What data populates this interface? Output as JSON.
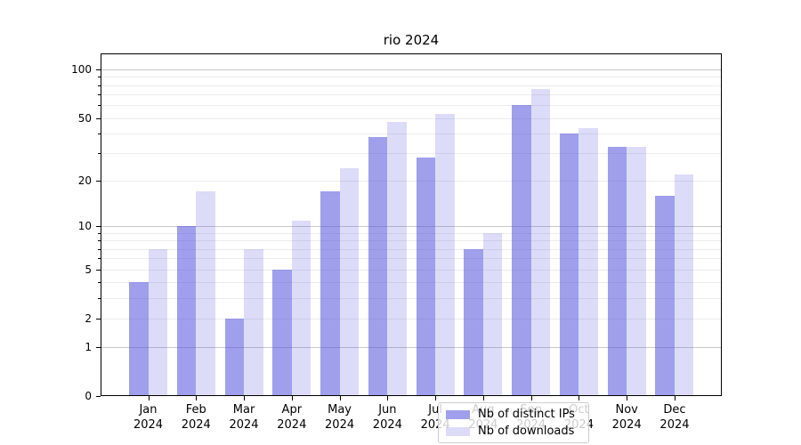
{
  "figure": {
    "background": "#ffffff"
  },
  "chart_data": {
    "type": "bar",
    "title": "rio 2024",
    "categories": [
      {
        "month": "Jan",
        "year": "2024"
      },
      {
        "month": "Feb",
        "year": "2024"
      },
      {
        "month": "Mar",
        "year": "2024"
      },
      {
        "month": "Apr",
        "year": "2024"
      },
      {
        "month": "May",
        "year": "2024"
      },
      {
        "month": "Jun",
        "year": "2024"
      },
      {
        "month": "Jul",
        "year": "2024"
      },
      {
        "month": "Aug",
        "year": "2024"
      },
      {
        "month": "Sep",
        "year": "2024"
      },
      {
        "month": "Oct",
        "year": "2024"
      },
      {
        "month": "Nov",
        "year": "2024"
      },
      {
        "month": "Dec",
        "year": "2024"
      }
    ],
    "series": [
      {
        "name": "Nb of distinct IPs",
        "color": "rgba(80,80,220,0.55)",
        "values": [
          4,
          10,
          2,
          5,
          17,
          38,
          28,
          7,
          60,
          40,
          33,
          16
        ]
      },
      {
        "name": "Nb of downloads",
        "color": "rgba(80,80,220,0.2)",
        "values": [
          7,
          17,
          7,
          11,
          24,
          47,
          53,
          9,
          76,
          43,
          33,
          22
        ]
      }
    ],
    "y_axis": {
      "scale": "log-like (position = log10(1+value), 0 at baseline)",
      "tick_values": [
        100,
        50,
        20,
        10,
        5,
        2,
        1,
        0
      ],
      "tick_labels": [
        "100",
        "50",
        "20",
        "10",
        "5",
        "2",
        "1",
        "0"
      ],
      "minor_values": [
        2,
        3,
        4,
        5,
        6,
        7,
        8,
        9,
        20,
        30,
        40,
        50,
        60,
        70,
        80,
        90
      ],
      "major_gridlines": [
        1,
        10,
        100
      ],
      "ylim_top": 125
    },
    "grid": true,
    "legend_position": "lower center inside plot",
    "colors": {
      "major_grid": "#c8c8c8",
      "minor_grid": "#ececec",
      "spine": "#000000",
      "text": "#000000"
    }
  }
}
